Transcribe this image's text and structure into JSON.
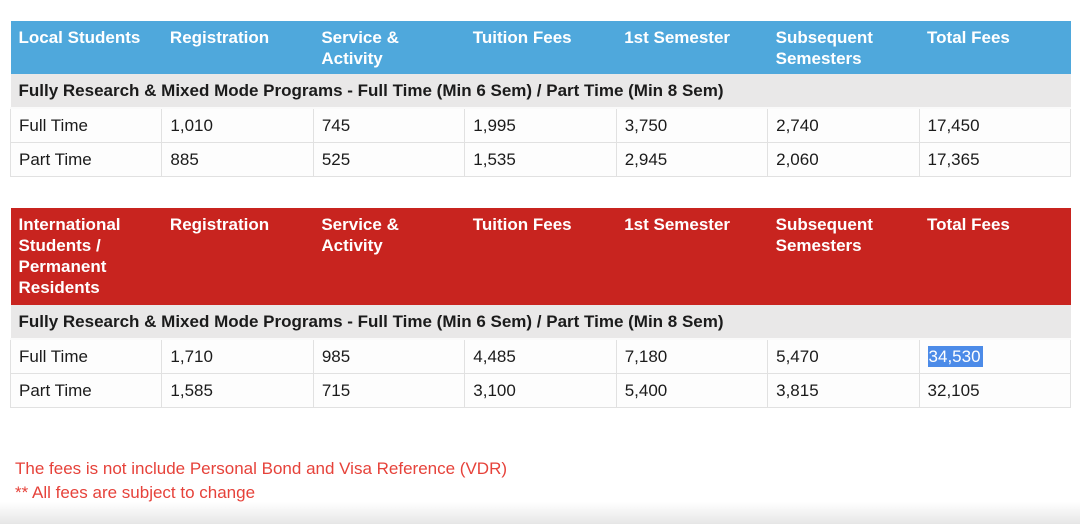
{
  "colors": {
    "local_header_bg": "#4FA8DC",
    "international_header_bg": "#C8241F",
    "subheader_bg": "#E9E8E8",
    "note_text": "#E6423A",
    "selection_bg": "#4C8BE8",
    "selection_text": "#FFFFFF"
  },
  "tables": [
    {
      "title": "Local Students",
      "columns": [
        "Local Students",
        "Registration",
        "Service & Activity",
        "Tuition Fees",
        "1st Semester",
        "Subsequent Semesters",
        "Total Fees"
      ],
      "subheader": "Fully Research & Mixed Mode Programs - Full Time (Min 6 Sem) / Part Time (Min 8 Sem)",
      "rows": [
        {
          "label": "Full Time",
          "values": [
            "1,010",
            "745",
            "1,995",
            "3,750",
            "2,740",
            "17,450"
          ]
        },
        {
          "label": "Part Time",
          "values": [
            "885",
            "525",
            "1,535",
            "2,945",
            "2,060",
            "17,365"
          ]
        }
      ]
    },
    {
      "title": "International Students / Permanent Residents",
      "columns": [
        "International Students / Permanent Residents",
        "Registration",
        "Service & Activity",
        "Tuition Fees",
        "1st Semester",
        "Subsequent Semesters",
        "Total Fees"
      ],
      "subheader": "Fully Research & Mixed Mode Programs - Full Time (Min 6 Sem) / Part Time (Min 8 Sem)",
      "rows": [
        {
          "label": "Full Time",
          "values": [
            "1,710",
            "985",
            "4,485",
            "7,180",
            "5,470",
            "34,530"
          ],
          "selected_value_index": 5
        },
        {
          "label": "Part Time",
          "values": [
            "1,585",
            "715",
            "3,100",
            "5,400",
            "3,815",
            "32,105"
          ]
        }
      ]
    }
  ],
  "notes": [
    "The fees is not include Personal Bond and Visa Reference (VDR)",
    "** All fees are subject to change"
  ]
}
